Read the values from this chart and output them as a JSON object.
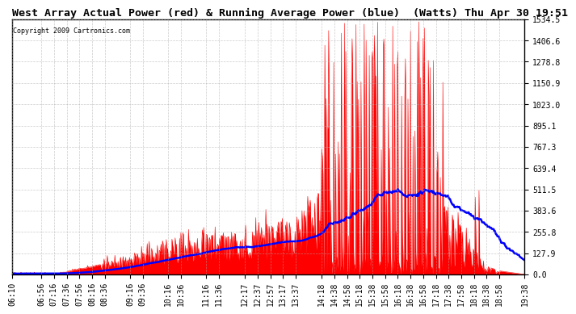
{
  "title": "West Array Actual Power (red) & Running Average Power (blue)  (Watts) Thu Apr 30 19:51",
  "copyright": "Copyright 2009 Cartronics.com",
  "y_ticks": [
    0.0,
    127.9,
    255.8,
    383.6,
    511.5,
    639.4,
    767.3,
    895.1,
    1023.0,
    1150.9,
    1278.8,
    1406.6,
    1534.5
  ],
  "y_max": 1534.5,
  "y_min": 0.0,
  "x_labels": [
    "06:10",
    "06:56",
    "07:16",
    "07:36",
    "07:56",
    "08:16",
    "08:36",
    "09:16",
    "09:36",
    "10:16",
    "10:36",
    "11:16",
    "11:36",
    "12:17",
    "12:37",
    "12:57",
    "13:17",
    "13:37",
    "14:18",
    "14:38",
    "14:58",
    "15:18",
    "15:38",
    "15:58",
    "16:18",
    "16:38",
    "16:58",
    "17:18",
    "17:38",
    "17:58",
    "18:18",
    "18:38",
    "18:58",
    "19:38"
  ],
  "background_color": "#ffffff",
  "plot_bg_color": "#ffffff",
  "grid_color": "#aaaaaa",
  "actual_color": "#ff0000",
  "avg_color": "#0000ff",
  "title_fontsize": 9.5,
  "tick_fontsize": 7
}
